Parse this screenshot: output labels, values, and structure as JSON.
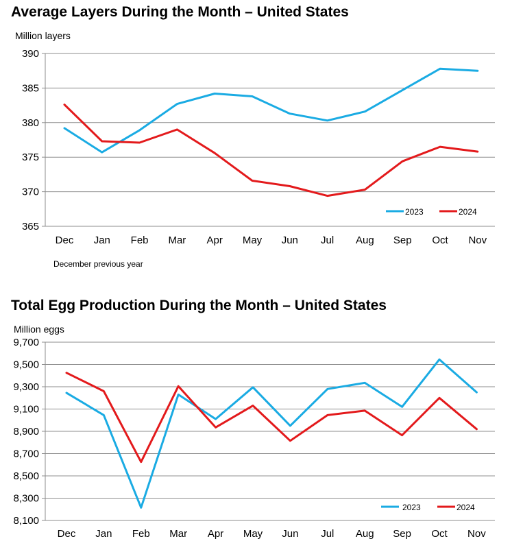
{
  "chart_data": [
    {
      "type": "line",
      "title": "Average Layers During the Month – United States",
      "ylabel": "Million layers",
      "xlabel": "",
      "note": "December previous year",
      "ylim": [
        365,
        390
      ],
      "yticks": [
        365,
        370,
        375,
        380,
        385,
        390
      ],
      "ytick_labels": [
        "365",
        "370",
        "375",
        "380",
        "385",
        "390"
      ],
      "grid": true,
      "legend_position": "bottom-right",
      "categories": [
        "Dec",
        "Jan",
        "Feb",
        "Mar",
        "Apr",
        "May",
        "Jun",
        "Jul",
        "Aug",
        "Sep",
        "Oct",
        "Nov"
      ],
      "series": [
        {
          "name": "2023",
          "color": "#1AABE3",
          "values": [
            379.2,
            375.7,
            378.9,
            382.7,
            384.2,
            383.8,
            381.3,
            380.3,
            381.6,
            384.7,
            387.8,
            387.5
          ]
        },
        {
          "name": "2024",
          "color": "#E31A1C",
          "values": [
            382.6,
            377.3,
            377.1,
            379.0,
            375.6,
            371.6,
            370.8,
            369.4,
            370.3,
            374.4,
            376.5,
            375.8
          ]
        }
      ]
    },
    {
      "type": "line",
      "title": "Total Egg Production During the Month – United States",
      "ylabel": "Million eggs",
      "xlabel": "",
      "ylim": [
        8100,
        9700
      ],
      "yticks": [
        8100,
        8300,
        8500,
        8700,
        8900,
        9100,
        9300,
        9500,
        9700
      ],
      "ytick_labels": [
        "8,100",
        "8,300",
        "8,500",
        "8,700",
        "8,900",
        "9,100",
        "9,300",
        "9,500",
        "9,700"
      ],
      "grid": true,
      "legend_position": "bottom-right",
      "categories": [
        "Dec",
        "Jan",
        "Feb",
        "Mar",
        "Apr",
        "May",
        "Jun",
        "Jul",
        "Aug",
        "Sep",
        "Oct",
        "Nov"
      ],
      "series": [
        {
          "name": "2023",
          "color": "#1AABE3",
          "values": [
            9245,
            9045,
            8215,
            9230,
            9010,
            9295,
            8950,
            9280,
            9335,
            9120,
            9545,
            9250
          ]
        },
        {
          "name": "2024",
          "color": "#E31A1C",
          "values": [
            9425,
            9260,
            8625,
            9305,
            8935,
            9130,
            8815,
            9045,
            9085,
            8865,
            9200,
            8920
          ]
        }
      ]
    }
  ]
}
